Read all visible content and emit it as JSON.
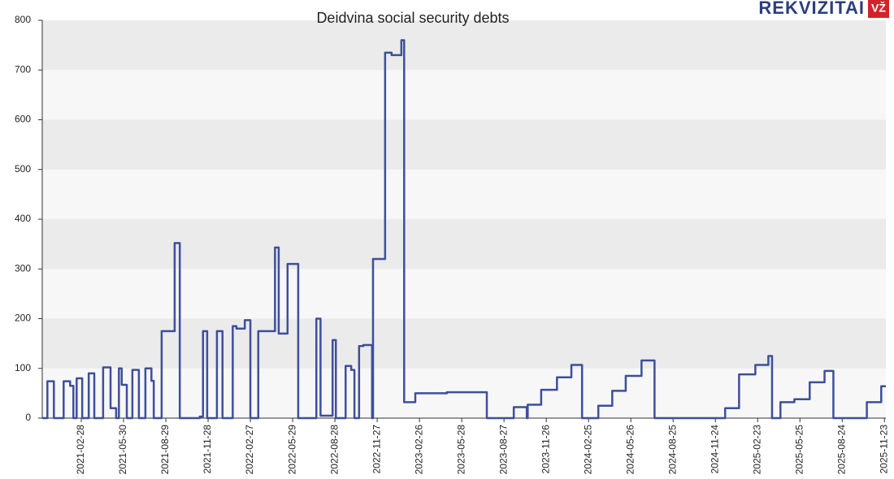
{
  "chart_data": {
    "type": "line",
    "step": "post",
    "title": "Deidvina social security debts",
    "logo": {
      "text": "REKVIZITAI",
      "badge": "VŽ"
    },
    "color": "#3d4f9c",
    "grid": true,
    "x": [
      "2020-12-06",
      "2020-12-17",
      "2020-12-31",
      "2021-01-21",
      "2021-02-04",
      "2021-02-11",
      "2021-02-18",
      "2021-03-02",
      "2021-03-16",
      "2021-03-28",
      "2021-04-16",
      "2021-05-02",
      "2021-05-14",
      "2021-05-20",
      "2021-05-26",
      "2021-06-06",
      "2021-06-18",
      "2021-07-02",
      "2021-07-16",
      "2021-07-29",
      "2021-08-03",
      "2021-08-20",
      "2021-09-17",
      "2021-09-28",
      "2021-11-10",
      "2021-11-17",
      "2021-11-26",
      "2021-12-17",
      "2021-12-29",
      "2022-01-20",
      "2022-01-28",
      "2022-02-15",
      "2022-02-27",
      "2022-03-16",
      "2022-04-21",
      "2022-04-29",
      "2022-05-18",
      "2022-06-10",
      "2022-07-19",
      "2022-07-28",
      "2022-08-23",
      "2022-08-30",
      "2022-09-20",
      "2022-10-02",
      "2022-10-09",
      "2022-10-19",
      "2022-10-28",
      "2022-11-16",
      "2022-11-18",
      "2022-12-14",
      "2022-12-28",
      "2023-01-18",
      "2023-01-24",
      "2023-02-17",
      "2023-04-26",
      "2023-07-21",
      "2023-09-17",
      "2023-10-15",
      "2023-10-17",
      "2023-11-15",
      "2023-12-19",
      "2024-01-19",
      "2024-02-11",
      "2024-03-17",
      "2024-04-16",
      "2024-05-15",
      "2024-06-18",
      "2024-07-16",
      "2024-12-15",
      "2025-01-14",
      "2025-02-18",
      "2025-03-18",
      "2025-03-26",
      "2025-04-13",
      "2025-05-13",
      "2025-06-15",
      "2025-07-17",
      "2025-08-05",
      "2025-10-16",
      "2025-11-16",
      "2025-11-26"
    ],
    "values": [
      0,
      74,
      0,
      74,
      65,
      0,
      80,
      0,
      90,
      0,
      102,
      20,
      0,
      100,
      67,
      0,
      97,
      0,
      100,
      75,
      0,
      175,
      352,
      0,
      3,
      175,
      0,
      175,
      0,
      185,
      180,
      197,
      0,
      175,
      343,
      170,
      310,
      0,
      200,
      5,
      157,
      0,
      105,
      97,
      0,
      145,
      147,
      0,
      320,
      735,
      730,
      760,
      32,
      50,
      52,
      0,
      22,
      0,
      27,
      57,
      82,
      107,
      0,
      25,
      55,
      85,
      116,
      0,
      20,
      88,
      107,
      125,
      0,
      32,
      38,
      72,
      95,
      0,
      32,
      64,
      64
    ],
    "xlim": [
      "2020-12-06",
      "2025-11-26"
    ],
    "xticks": [
      "2021-02-28",
      "2021-05-30",
      "2021-08-29",
      "2021-11-28",
      "2022-02-27",
      "2022-05-29",
      "2022-08-28",
      "2022-11-27",
      "2023-02-26",
      "2023-05-28",
      "2023-08-27",
      "2023-11-26",
      "2024-02-25",
      "2024-05-26",
      "2024-08-25",
      "2024-11-24",
      "2025-02-23",
      "2025-05-25",
      "2025-08-24",
      "2025-11-23"
    ],
    "ylim": [
      0,
      800
    ],
    "yticks": [
      0,
      100,
      200,
      300,
      400,
      500,
      600,
      700,
      800
    ]
  }
}
